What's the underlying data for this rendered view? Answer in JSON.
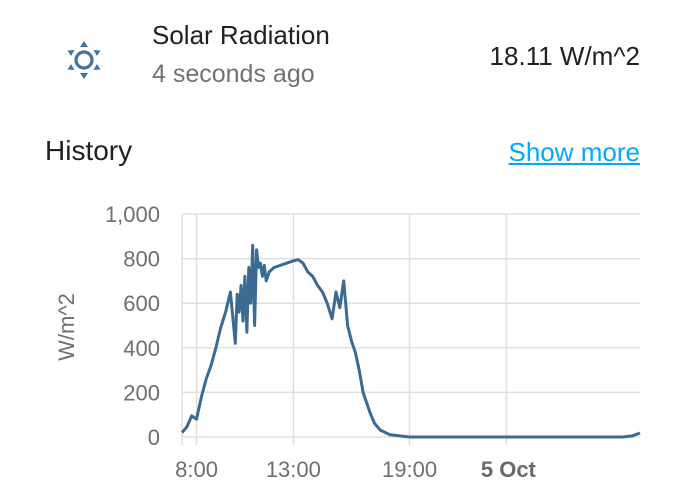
{
  "entity": {
    "name": "Solar Radiation",
    "last_changed": "4 seconds ago",
    "state": "18.11 W/m^2",
    "icon": "weather-sunny-icon"
  },
  "history": {
    "title": "History",
    "show_more_label": "Show more"
  },
  "colors": {
    "line": "#3b6a93",
    "link": "#03a9f4",
    "grid": "#e0e0e0"
  },
  "chart_data": {
    "type": "line",
    "ylabel": "W/m^2",
    "ylim": [
      0,
      1000
    ],
    "yticks": [
      "0",
      "200",
      "400",
      "600",
      "800",
      "1,000"
    ],
    "xticks": [
      {
        "label": "8:00",
        "hour": 8
      },
      {
        "label": "13:00",
        "hour": 13
      },
      {
        "label": "19:00",
        "hour": 19
      },
      {
        "label": "5 Oct",
        "hour": 24,
        "bold": true
      }
    ],
    "xlim_hours": [
      7.25,
      30.9
    ],
    "series": [
      {
        "x": [
          7.25,
          7.5,
          7.75,
          8.0,
          8.25,
          8.5,
          8.75,
          9.0,
          9.25,
          9.5,
          9.75,
          10.0,
          10.1,
          10.2,
          10.3,
          10.4,
          10.5,
          10.6,
          10.7,
          10.8,
          10.9,
          11.0,
          11.1,
          11.2,
          11.3,
          11.4,
          11.5,
          11.6,
          11.75,
          12.0,
          12.5,
          13.0,
          13.25,
          13.5,
          13.75,
          14.0,
          14.25,
          14.5,
          14.75,
          15.0,
          15.2,
          15.4,
          15.6,
          15.8,
          16.0,
          16.2,
          16.4,
          16.6,
          16.8,
          17.0,
          17.2,
          17.5,
          17.75,
          18.0,
          18.5,
          19.0,
          19.5,
          20.0,
          22.0,
          24.0,
          26.0,
          28.0,
          30.0,
          30.5,
          30.9
        ],
        "y": [
          20,
          45,
          95,
          80,
          180,
          260,
          320,
          400,
          490,
          560,
          650,
          420,
          640,
          560,
          680,
          520,
          720,
          470,
          760,
          600,
          860,
          500,
          840,
          760,
          780,
          720,
          770,
          700,
          740,
          760,
          775,
          790,
          795,
          780,
          740,
          720,
          680,
          650,
          600,
          530,
          650,
          580,
          700,
          500,
          430,
          380,
          300,
          200,
          150,
          100,
          60,
          30,
          20,
          10,
          5,
          0,
          0,
          0,
          0,
          0,
          0,
          0,
          0,
          5,
          18
        ]
      }
    ]
  }
}
